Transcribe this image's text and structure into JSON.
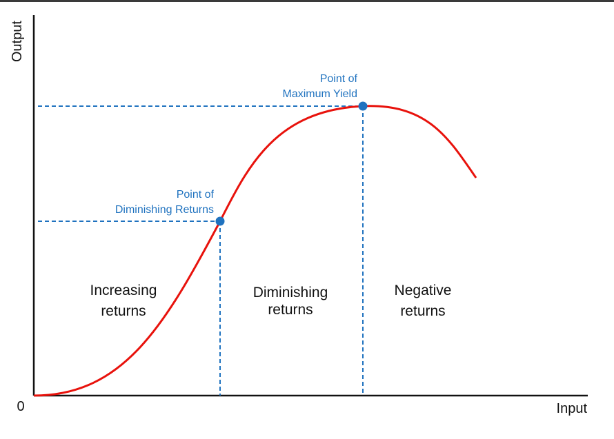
{
  "diagram": {
    "axes": {
      "y_label": "Output",
      "x_label": "Input",
      "origin_label": "0"
    },
    "points": {
      "diminishing": {
        "line1": "Point of",
        "line2": "Diminishing Returns"
      },
      "maximum": {
        "line1": "Point of",
        "line2": "Maximum Yield"
      }
    },
    "regions": {
      "increasing": {
        "line1": "Increasing",
        "line2": "returns"
      },
      "diminishing": {
        "line1": "Diminishing",
        "line2": "returns"
      },
      "negative": {
        "line1": "Negative",
        "line2": "returns"
      }
    },
    "colors": {
      "curve": "#e8120c",
      "accent": "#1f72bf",
      "axis": "#111111"
    }
  }
}
